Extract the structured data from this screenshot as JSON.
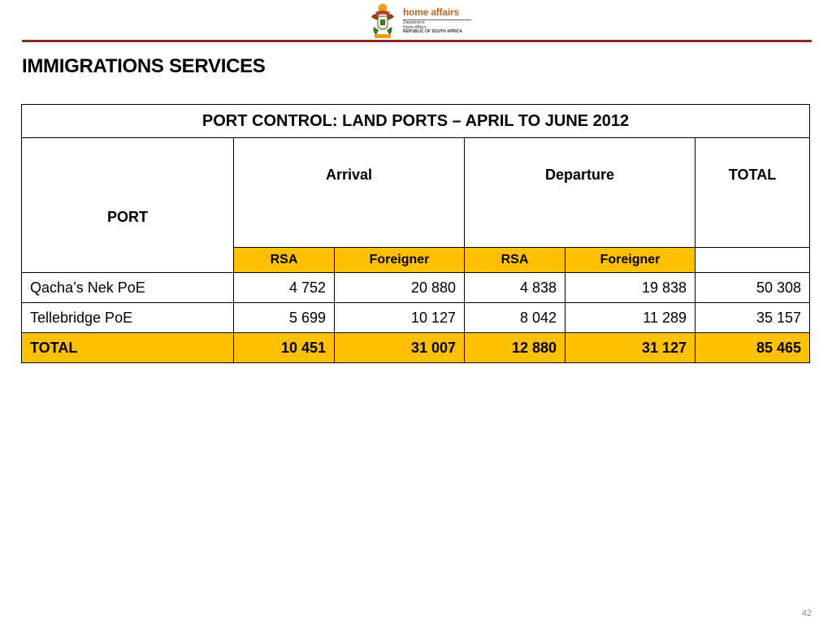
{
  "logo": {
    "brand": "home affairs",
    "sub_lines": [
      "Department:",
      "Home Affairs",
      "REPUBLIC OF SOUTH AFRICA"
    ]
  },
  "slide": {
    "title": "IMMIGRATIONS SERVICES",
    "page_number": "42"
  },
  "table": {
    "caption": "PORT CONTROL: LAND PORTS – APRIL TO JUNE 2012",
    "port_header": "PORT",
    "arrival_header": "Arrival",
    "departure_header": "Departure",
    "total_header": "TOTAL",
    "sub_headers": [
      "RSA",
      "Foreigner",
      "RSA",
      "Foreigner"
    ],
    "rows": [
      {
        "port": "Qacha’s Nek PoE",
        "arr_rsa": "4 752",
        "arr_for": "20 880",
        "dep_rsa": "4 838",
        "dep_for": "19 838",
        "total": "50 308"
      },
      {
        "port": "Tellebridge PoE",
        "arr_rsa": "5 699",
        "arr_for": "10 127",
        "dep_rsa": "8 042",
        "dep_for": "11 289",
        "total": "35 157"
      }
    ],
    "total_row": {
      "port": "TOTAL",
      "arr_rsa": "10 451",
      "arr_for": "31 007",
      "dep_rsa": "12 880",
      "dep_for": "31 127",
      "total": "85 465"
    }
  },
  "colors": {
    "accent_rule": "#8b2a1f",
    "highlight": "#ffc000",
    "brand": "#b5651d"
  }
}
